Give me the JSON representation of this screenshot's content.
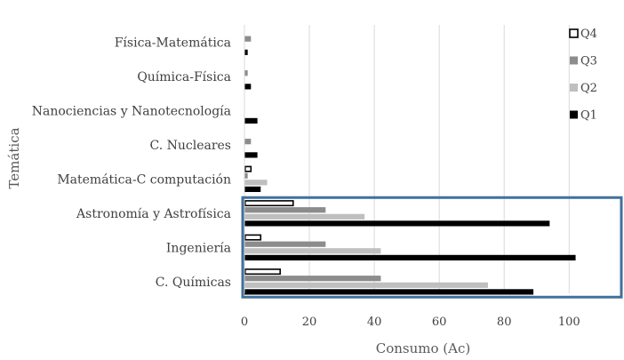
{
  "chart_data": {
    "type": "bar",
    "orientation": "horizontal",
    "title": "",
    "xlabel": "Consumo (Ac)",
    "ylabel": "Temática",
    "xlim": [
      0,
      115
    ],
    "xticks": [
      0,
      20,
      40,
      60,
      80,
      100
    ],
    "grid": "vertical",
    "legend_position": "top-right",
    "categories": [
      "Física-Matemática",
      "Química-Física",
      "Nanociencias y Nanotecnología",
      "C. Nucleares",
      "Matemática-C computación",
      "Astronomía y Astrofísica",
      "Ingeniería",
      "C. Químicas"
    ],
    "series": [
      {
        "name": "Q4",
        "color": "#ffffff",
        "stroke": "#000000",
        "values": [
          0,
          0,
          0,
          0,
          2,
          15,
          5,
          11
        ]
      },
      {
        "name": "Q3",
        "color": "#8c8c8c",
        "stroke": "none",
        "values": [
          2,
          1,
          0,
          2,
          1,
          25,
          25,
          42
        ]
      },
      {
        "name": "Q2",
        "color": "#bfbfbf",
        "stroke": "none",
        "values": [
          0,
          0,
          0,
          0,
          7,
          37,
          42,
          75
        ]
      },
      {
        "name": "Q1",
        "color": "#000000",
        "stroke": "none",
        "values": [
          1,
          2,
          4,
          4,
          5,
          94,
          102,
          89
        ]
      }
    ],
    "highlight": {
      "categories": [
        "Astronomía y Astrofísica",
        "Ingeniería",
        "C. Químicas"
      ],
      "color": "#41719c"
    }
  }
}
